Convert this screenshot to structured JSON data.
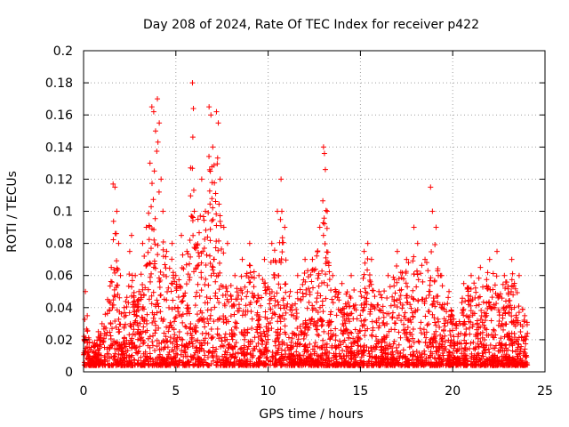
{
  "chart_data": {
    "type": "scatter",
    "title": "Day 208 of 2024, Rate Of TEC Index for receiver p422",
    "xlabel": "GPS time / hours",
    "ylabel": "ROTI / TECUs",
    "xlim": [
      0,
      25
    ],
    "ylim": [
      0,
      0.2
    ],
    "xticks": [
      0,
      5,
      10,
      15,
      20,
      25
    ],
    "yticks": [
      0,
      0.02,
      0.04,
      0.06,
      0.08,
      0.1,
      0.12,
      0.14,
      0.16,
      0.18,
      0.2
    ],
    "xtick_labels": [
      "0",
      "5",
      "10",
      "15",
      "20",
      "25"
    ],
    "ytick_labels": [
      "0",
      "0.02",
      "0.04",
      "0.06",
      "0.08",
      "0.1",
      "0.12",
      "0.14",
      "0.16",
      "0.18",
      "0.2"
    ],
    "grid": true,
    "marker": "+",
    "marker_color": "#ff0000",
    "series": [
      {
        "points": [
          [
            0.1,
            0.05
          ],
          [
            0.2,
            0.035
          ],
          [
            0.3,
            0.02
          ],
          [
            0.5,
            0.018
          ],
          [
            0.8,
            0.025
          ],
          [
            1.0,
            0.03
          ],
          [
            1.3,
            0.045
          ],
          [
            1.5,
            0.065
          ],
          [
            1.6,
            0.117
          ],
          [
            1.7,
            0.115
          ],
          [
            1.8,
            0.1
          ],
          [
            1.9,
            0.08
          ],
          [
            2.0,
            0.06
          ],
          [
            2.2,
            0.04
          ],
          [
            2.5,
            0.075
          ],
          [
            2.6,
            0.085
          ],
          [
            2.8,
            0.06
          ],
          [
            3.0,
            0.05
          ],
          [
            3.2,
            0.08
          ],
          [
            3.4,
            0.09
          ],
          [
            3.6,
            0.13
          ],
          [
            3.7,
            0.165
          ],
          [
            3.8,
            0.162
          ],
          [
            3.9,
            0.15
          ],
          [
            4.0,
            0.17
          ],
          [
            4.1,
            0.155
          ],
          [
            4.2,
            0.12
          ],
          [
            4.3,
            0.1
          ],
          [
            4.5,
            0.075
          ],
          [
            4.8,
            0.08
          ],
          [
            5.0,
            0.06
          ],
          [
            5.3,
            0.085
          ],
          [
            5.6,
            0.075
          ],
          [
            5.9,
            0.18
          ],
          [
            5.95,
            0.164
          ],
          [
            5.8,
            0.127
          ],
          [
            6.0,
            0.1
          ],
          [
            6.2,
            0.095
          ],
          [
            6.4,
            0.12
          ],
          [
            6.6,
            0.1
          ],
          [
            6.8,
            0.165
          ],
          [
            6.9,
            0.16
          ],
          [
            7.0,
            0.14
          ],
          [
            7.2,
            0.162
          ],
          [
            7.3,
            0.155
          ],
          [
            7.4,
            0.12
          ],
          [
            7.6,
            0.09
          ],
          [
            7.8,
            0.08
          ],
          [
            8.2,
            0.06
          ],
          [
            8.6,
            0.07
          ],
          [
            9.0,
            0.08
          ],
          [
            9.5,
            0.06
          ],
          [
            9.8,
            0.07
          ],
          [
            10.2,
            0.08
          ],
          [
            10.5,
            0.1
          ],
          [
            10.7,
            0.12
          ],
          [
            10.9,
            0.09
          ],
          [
            11.2,
            0.05
          ],
          [
            11.6,
            0.06
          ],
          [
            12.0,
            0.07
          ],
          [
            12.4,
            0.07
          ],
          [
            12.8,
            0.09
          ],
          [
            13.0,
            0.14
          ],
          [
            13.05,
            0.136
          ],
          [
            13.1,
            0.126
          ],
          [
            13.2,
            0.1
          ],
          [
            13.5,
            0.06
          ],
          [
            14.0,
            0.055
          ],
          [
            14.5,
            0.06
          ],
          [
            15.0,
            0.05
          ],
          [
            15.2,
            0.075
          ],
          [
            15.4,
            0.08
          ],
          [
            15.6,
            0.07
          ],
          [
            16.0,
            0.05
          ],
          [
            16.5,
            0.06
          ],
          [
            17.0,
            0.075
          ],
          [
            17.5,
            0.07
          ],
          [
            17.9,
            0.09
          ],
          [
            18.1,
            0.08
          ],
          [
            18.5,
            0.07
          ],
          [
            18.8,
            0.115
          ],
          [
            18.9,
            0.1
          ],
          [
            19.1,
            0.09
          ],
          [
            19.4,
            0.06
          ],
          [
            19.8,
            0.05
          ],
          [
            20.2,
            0.03
          ],
          [
            20.6,
            0.055
          ],
          [
            21.0,
            0.06
          ],
          [
            21.5,
            0.065
          ],
          [
            22.0,
            0.07
          ],
          [
            22.4,
            0.075
          ],
          [
            22.8,
            0.06
          ],
          [
            23.2,
            0.07
          ],
          [
            23.6,
            0.06
          ],
          [
            23.9,
            0.035
          ]
        ]
      }
    ]
  }
}
